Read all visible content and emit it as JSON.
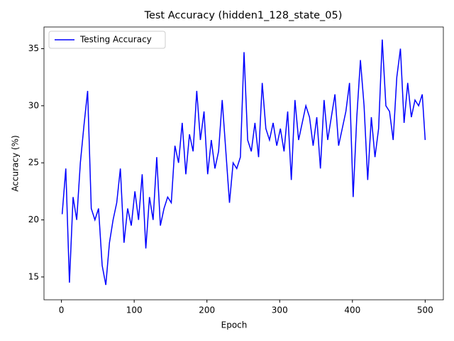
{
  "chart_data": {
    "type": "line",
    "title": "Test Accuracy (hidden1_128_state_05)",
    "x_label": "Epoch",
    "y_label": "Accuracy (%)",
    "x": [
      1,
      6,
      11,
      16,
      21,
      26,
      31,
      36,
      41,
      46,
      51,
      56,
      61,
      66,
      71,
      76,
      81,
      86,
      91,
      96,
      101,
      106,
      111,
      116,
      121,
      126,
      131,
      136,
      141,
      146,
      151,
      156,
      161,
      166,
      171,
      176,
      181,
      186,
      191,
      196,
      201,
      206,
      211,
      216,
      221,
      226,
      231,
      236,
      241,
      246,
      251,
      256,
      261,
      266,
      271,
      276,
      281,
      286,
      291,
      296,
      301,
      306,
      311,
      316,
      321,
      326,
      331,
      336,
      341,
      346,
      351,
      356,
      361,
      366,
      371,
      376,
      381,
      386,
      391,
      396,
      401,
      406,
      411,
      416,
      421,
      426,
      431,
      436,
      441,
      446,
      451,
      456,
      461,
      466,
      471,
      476,
      481,
      486,
      491,
      496,
      500
    ],
    "series": [
      {
        "name": "Testing Accuracy",
        "color": "#0000ff",
        "values": [
          20.5,
          24.5,
          14.5,
          22,
          20,
          25,
          28.3,
          31.3,
          21,
          20,
          21,
          16,
          14.3,
          18,
          20,
          21.5,
          24.5,
          18,
          21,
          19.5,
          22.5,
          20,
          24,
          17.5,
          22,
          20,
          25.5,
          19.5,
          21,
          22,
          21.5,
          26.5,
          25,
          28.5,
          24,
          27.5,
          26,
          31.3,
          27,
          29.5,
          24,
          27,
          24.5,
          26,
          30.5,
          26,
          21.5,
          25,
          24.5,
          25.5,
          34.7,
          27,
          26,
          28.5,
          25.5,
          32,
          28,
          27,
          28.5,
          26.5,
          28,
          26,
          29.5,
          23.5,
          30.5,
          27,
          28.5,
          30,
          29,
          26.5,
          29,
          24.5,
          30.5,
          27,
          29,
          31,
          26.5,
          28,
          29.5,
          32,
          22,
          29,
          34,
          30,
          23.5,
          29,
          25.5,
          28,
          35.8,
          30,
          29.5,
          27,
          32.5,
          35,
          28.5,
          32,
          29,
          30.5,
          30,
          31,
          27
        ]
      }
    ],
    "xlim": [
      -24,
      525
    ],
    "ylim": [
      13.0,
      36.9
    ],
    "xticks": [
      0,
      100,
      200,
      300,
      400,
      500
    ],
    "yticks": [
      15,
      20,
      25,
      30,
      35
    ],
    "legend": "upper left"
  }
}
